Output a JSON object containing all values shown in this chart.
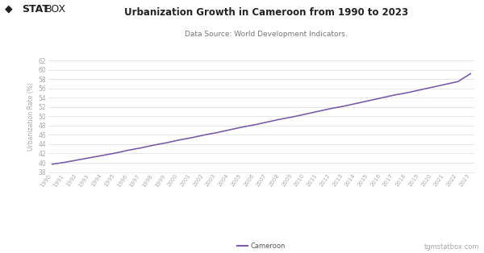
{
  "title": "Urbanization Growth in Cameroon from 1990 to 2023",
  "subtitle": "Data Source: World Development Indicators.",
  "ylabel": "Urbanization Rate (%)",
  "line_color": "#7b5ea7",
  "background_color": "#ffffff",
  "plot_background": "#ffffff",
  "years": [
    1990,
    1991,
    1992,
    1993,
    1994,
    1995,
    1996,
    1997,
    1998,
    1999,
    2000,
    2001,
    2002,
    2003,
    2004,
    2005,
    2006,
    2007,
    2008,
    2009,
    2010,
    2011,
    2012,
    2013,
    2014,
    2015,
    2016,
    2017,
    2018,
    2019,
    2020,
    2021,
    2022,
    2023
  ],
  "values": [
    39.7,
    40.1,
    40.6,
    41.1,
    41.6,
    42.1,
    42.7,
    43.2,
    43.8,
    44.3,
    44.9,
    45.4,
    46.0,
    46.5,
    47.1,
    47.7,
    48.2,
    48.8,
    49.4,
    49.9,
    50.5,
    51.1,
    51.7,
    52.2,
    52.8,
    53.4,
    54.0,
    54.6,
    55.1,
    55.7,
    56.3,
    56.9,
    57.5,
    59.2
  ],
  "ylim": [
    38,
    62
  ],
  "yticks": [
    38,
    40,
    42,
    44,
    46,
    48,
    50,
    52,
    54,
    56,
    58,
    60,
    62
  ],
  "legend_label": "Cameroon",
  "watermark": "tgmstatbox.com",
  "grid_color": "#dddddd",
  "tick_label_color": "#aaaaaa",
  "ylabel_color": "#aaaaaa",
  "title_color": "#222222",
  "subtitle_color": "#777777"
}
